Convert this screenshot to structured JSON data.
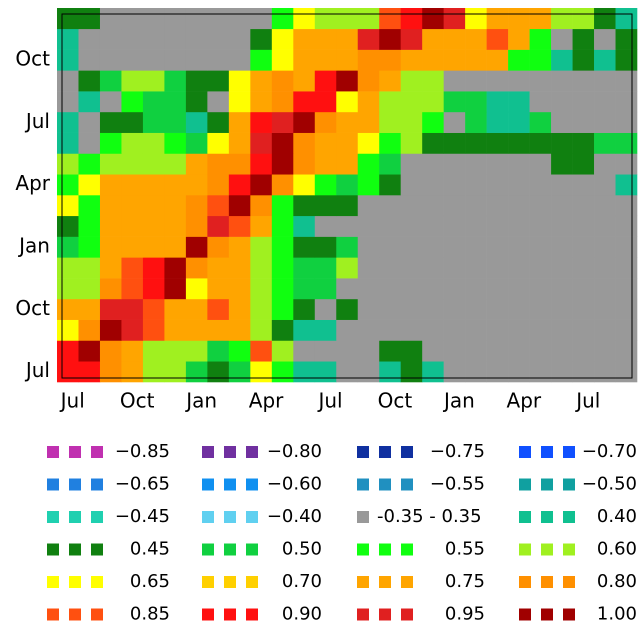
{
  "chart_data": {
    "type": "heatmap",
    "x": [
      "Jul",
      null,
      null,
      "Oct",
      null,
      null,
      "Jan",
      null,
      null,
      "Apr",
      null,
      null,
      "Jul",
      null,
      null,
      "Oct",
      null,
      null,
      "Jan",
      null,
      null,
      "Apr",
      null,
      null,
      "Jul",
      null,
      null
    ],
    "y": [
      "Jul",
      null,
      null,
      "Oct",
      null,
      null,
      "Jan",
      null,
      null,
      "Apr",
      null,
      null,
      "Jul",
      null,
      null,
      "Oct",
      null,
      null
    ],
    "z": [
      [
        0.9,
        0.9,
        0.8,
        0.75,
        0.6,
        0.6,
        0.5,
        0.45,
        0.5,
        0.65,
        0.55,
        0.4,
        0.4,
        0,
        0,
        0.4,
        0.45,
        0.4,
        0,
        0,
        0,
        0,
        0,
        0,
        0,
        0,
        0
      ],
      [
        0.9,
        1,
        0.8,
        0.75,
        0.6,
        0.6,
        0.6,
        0.5,
        0.55,
        0.85,
        0.6,
        0,
        0,
        0,
        0,
        0.45,
        0.45,
        0,
        0,
        0,
        0,
        0,
        0,
        0,
        0,
        0,
        0
      ],
      [
        0.65,
        0.8,
        1,
        0.95,
        0.85,
        0.75,
        0.75,
        0.75,
        0.75,
        0.6,
        0.45,
        0.4,
        0.4,
        0,
        0,
        0,
        0,
        0,
        0,
        0,
        0,
        0,
        0,
        0,
        0,
        0,
        0
      ],
      [
        0.75,
        0.75,
        0.95,
        0.95,
        0.85,
        0.75,
        0.75,
        0.85,
        0.75,
        0.6,
        0.55,
        0.45,
        0,
        0.45,
        0,
        0,
        0,
        0,
        0,
        0,
        0,
        0,
        0,
        0,
        0,
        0,
        0
      ],
      [
        0.6,
        0.6,
        0.8,
        0.85,
        0.9,
        1,
        0.65,
        0.75,
        0.75,
        0.6,
        0.55,
        0.5,
        0.5,
        0,
        0,
        0,
        0,
        0,
        0,
        0,
        0,
        0,
        0,
        0,
        0,
        0,
        0
      ],
      [
        0.6,
        0.6,
        0.75,
        0.85,
        0.9,
        1,
        0.8,
        0.75,
        0.75,
        0.6,
        0.55,
        0.5,
        0.5,
        0.6,
        0,
        0,
        0,
        0,
        0,
        0,
        0,
        0,
        0,
        0,
        0,
        0,
        0
      ],
      [
        0.5,
        0.55,
        0.75,
        0.75,
        0.75,
        0.75,
        1,
        0.8,
        0.75,
        0.6,
        0.55,
        0.45,
        0.45,
        0.5,
        0,
        0,
        0,
        0,
        0,
        0,
        0,
        0,
        0,
        0,
        0,
        0,
        0
      ],
      [
        0.45,
        0.55,
        0.75,
        0.75,
        0.75,
        0.75,
        0.8,
        0.95,
        0.85,
        0.75,
        0.55,
        0.4,
        0,
        0,
        0,
        0,
        0,
        0,
        0,
        0,
        0,
        0,
        0,
        0,
        0,
        0,
        0
      ],
      [
        0.65,
        0.55,
        0.75,
        0.75,
        0.75,
        0.75,
        0.8,
        0.85,
        1,
        0.8,
        0.55,
        0.45,
        0.45,
        0.45,
        0,
        0,
        0,
        0,
        0,
        0,
        0,
        0,
        0,
        0,
        0,
        0,
        0
      ],
      [
        0.55,
        0.65,
        0.75,
        0.75,
        0.75,
        0.75,
        0.75,
        0.8,
        0.9,
        1,
        0.8,
        0.65,
        0.55,
        0.5,
        0.55,
        0.45,
        0,
        0,
        0,
        0,
        0,
        0,
        0,
        0,
        0,
        0,
        0.4
      ],
      [
        0.6,
        0.55,
        0.6,
        0.6,
        0.6,
        0.6,
        0.75,
        0.8,
        0.8,
        0.9,
        1,
        0.8,
        0.75,
        0.75,
        0.55,
        0.5,
        0,
        0,
        0,
        0,
        0,
        0,
        0,
        0.45,
        0.45,
        0,
        0
      ],
      [
        0.4,
        0,
        0.55,
        0.6,
        0.6,
        0.55,
        0.5,
        0.65,
        0.75,
        0.95,
        1,
        0.8,
        0.75,
        0.75,
        0.65,
        0.55,
        0.6,
        0.45,
        0.45,
        0.45,
        0.45,
        0.45,
        0.45,
        0.45,
        0.45,
        0.5,
        0.5
      ],
      [
        0.4,
        0,
        0.45,
        0.45,
        0.5,
        0.5,
        0.4,
        0.45,
        0.75,
        0.9,
        0.95,
        1,
        0.8,
        0.75,
        0.75,
        0.6,
        0.6,
        0.55,
        0,
        0.5,
        0.4,
        0.4,
        0.5,
        0,
        0,
        0,
        0
      ],
      [
        0,
        0.4,
        0,
        0.55,
        0.5,
        0.5,
        0.45,
        0,
        0.65,
        0.75,
        0.8,
        0.9,
        0.9,
        0.65,
        0.75,
        0.6,
        0.6,
        0.6,
        0.5,
        0.5,
        0.4,
        0.4,
        0,
        0,
        0,
        0,
        0
      ],
      [
        0,
        0.45,
        0.5,
        0.6,
        0.6,
        0.5,
        0.45,
        0.45,
        0.65,
        0.75,
        0.8,
        0.75,
        0.9,
        1,
        0.8,
        0.75,
        0.6,
        0.6,
        0,
        0,
        0,
        0,
        0,
        0,
        0,
        0,
        0
      ],
      [
        0.4,
        0,
        0,
        0,
        0,
        0,
        0,
        0,
        0,
        0.55,
        0.65,
        0.75,
        0.75,
        0.75,
        0.8,
        0.8,
        0.75,
        0.75,
        0.75,
        0.75,
        0.75,
        0.55,
        0.55,
        0.4,
        0.45,
        0.4,
        0.45
      ],
      [
        0.4,
        0,
        0,
        0,
        0,
        0,
        0,
        0,
        0,
        0.45,
        0.65,
        0.75,
        0.75,
        0.75,
        0.95,
        1,
        0.95,
        0.75,
        0.75,
        0.75,
        0.85,
        0.75,
        0.55,
        0,
        0.45,
        0,
        0.45
      ],
      [
        0.45,
        0.45,
        0,
        0,
        0,
        0,
        0,
        0,
        0,
        0,
        0.55,
        0.65,
        0.6,
        0.6,
        0.6,
        0.85,
        0.9,
        1,
        0.95,
        0.65,
        0.75,
        0.75,
        0.75,
        0.6,
        0.6,
        0.45,
        0.4
      ]
    ],
    "legend": [
      {
        "value": -0.85,
        "label": "−0.85",
        "color": "#c030b0"
      },
      {
        "value": -0.8,
        "label": "−0.80",
        "color": "#7030a0"
      },
      {
        "value": -0.75,
        "label": "−0.75",
        "color": "#1030a0"
      },
      {
        "value": -0.7,
        "label": "−0.70",
        "color": "#1050ff"
      },
      {
        "value": -0.65,
        "label": "−0.65",
        "color": "#2080e0"
      },
      {
        "value": -0.6,
        "label": "−0.60",
        "color": "#1090f0"
      },
      {
        "value": -0.55,
        "label": "−0.55",
        "color": "#2090c0"
      },
      {
        "value": -0.5,
        "label": "−0.50",
        "color": "#10a0a0"
      },
      {
        "value": -0.45,
        "label": "−0.45",
        "color": "#20d0b0"
      },
      {
        "value": -0.4,
        "label": "−0.40",
        "color": "#60d0f0"
      },
      {
        "range": [
          -0.35,
          0.35
        ],
        "label": "-0.35 - 0.35",
        "color": "#999999"
      },
      {
        "value": 0.4,
        "label": "0.40",
        "color": "#10c090"
      },
      {
        "value": 0.45,
        "label": "0.45",
        "color": "#108010"
      },
      {
        "value": 0.5,
        "label": "0.50",
        "color": "#10d040"
      },
      {
        "value": 0.55,
        "label": "0.55",
        "color": "#10ff10"
      },
      {
        "value": 0.6,
        "label": "0.60",
        "color": "#a0f020"
      },
      {
        "value": 0.65,
        "label": "0.65",
        "color": "#ffff00"
      },
      {
        "value": 0.7,
        "label": "0.70",
        "color": "#ffd000"
      },
      {
        "value": 0.75,
        "label": "0.75",
        "color": "#ffa500"
      },
      {
        "value": 0.8,
        "label": "0.80",
        "color": "#ff9000"
      },
      {
        "value": 0.85,
        "label": "0.85",
        "color": "#ff5010"
      },
      {
        "value": 0.9,
        "label": "0.90",
        "color": "#ff1010"
      },
      {
        "value": 0.95,
        "label": "0.95",
        "color": "#e02020"
      },
      {
        "value": 1,
        "label": "1.00",
        "color": "#a00000"
      }
    ]
  }
}
